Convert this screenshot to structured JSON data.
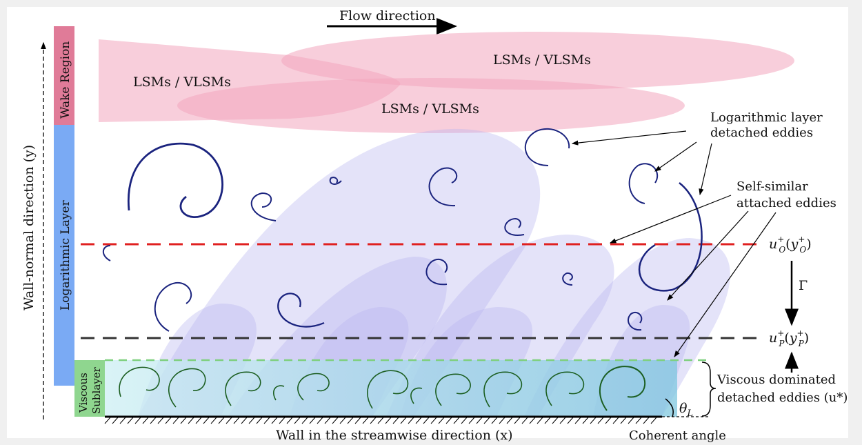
{
  "labels": {
    "flow_direction": "Flow direction",
    "wall_normal": "Wall-normal direction (y)",
    "wall_streamwise": "Wall in the streamwise direction (x)",
    "coherent_angle": "Coherent angle",
    "theta": "θ",
    "theta_sub": "L",
    "gamma": "Γ"
  },
  "regions": {
    "wake": "Wake Region",
    "log": "Logarithmic Layer",
    "viscous_line1": "Viscous",
    "viscous_line2": "Sublayer"
  },
  "lsm_labels": [
    "LSMs / VLSMs",
    "LSMs / VLSMs",
    "LSMs / VLSMs"
  ],
  "annotations": {
    "log_detached_1": "Logarithmic layer",
    "log_detached_2": "detached eddies",
    "self_similar_1": "Self-similar",
    "self_similar_2": "attached eddies",
    "viscous_dom_1": "Viscous dominated",
    "viscous_dom_2": "detached eddies (u*)"
  },
  "levels": {
    "outer": {
      "base": "u",
      "sup": "+",
      "sub": "O",
      "arg_base": "y",
      "arg_sup": "+",
      "arg_sub": "O"
    },
    "predicted": {
      "base": "u",
      "sup": "+",
      "sub": "P",
      "arg_base": "y",
      "arg_sup": "+",
      "arg_sub": "P"
    }
  },
  "colors": {
    "wake": "#e07b98",
    "log": "#7aaaf4",
    "viscous": "#8fd68f",
    "lsm": "#f2a6be",
    "eddy_blue": "#b8b6f0",
    "outer_line": "#e02020",
    "predicted_line": "#333333",
    "viscous_line": "#7fd07f",
    "spiral": "#1a237e",
    "spiral_green": "#1b5e20"
  }
}
